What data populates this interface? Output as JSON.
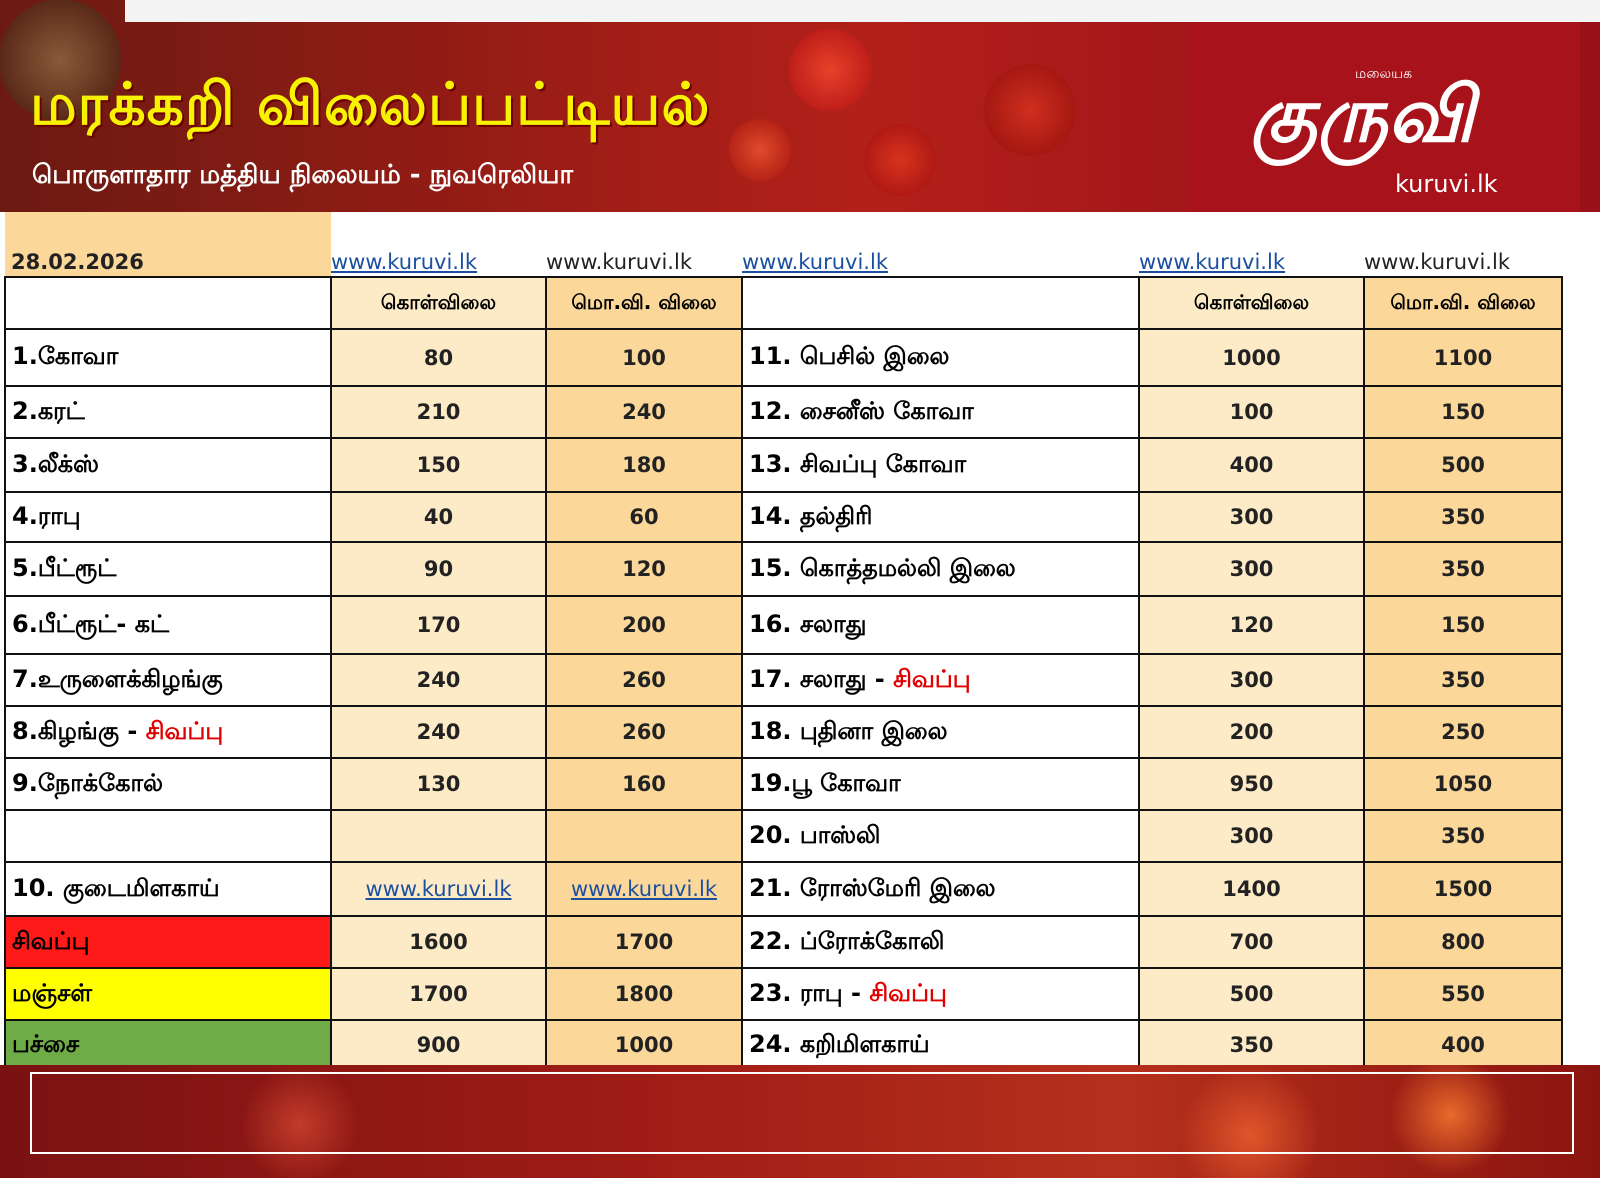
{
  "header": {
    "title": "மரக்கறி விலைப்பட்டியல்",
    "subtitle": "பொருளாதார மத்திய நிலையம் - நுவரெலியா",
    "logo_small": "மலையக",
    "logo_text": "குருவி",
    "logo_url": "kuruvi.lk"
  },
  "date": "28.02.2026",
  "watermark": "www.kuruvi.lk",
  "columns": {
    "wholesale": "கொள்விலை",
    "retail": "மொ.வி. விலை"
  },
  "left_rows": [
    {
      "name": "1.கோவா",
      "wholesale": "80",
      "retail": "100"
    },
    {
      "name": "2.கரட்",
      "wholesale": "210",
      "retail": "240"
    },
    {
      "name": "3.லீக்ஸ்",
      "wholesale": "150",
      "retail": "180"
    },
    {
      "name": "4.ராபு",
      "wholesale": "40",
      "retail": "60"
    },
    {
      "name": "5.பீட்ரூட்",
      "wholesale": "90",
      "retail": "120"
    },
    {
      "name": "6.பீட்ரூட்- கட்",
      "wholesale": "170",
      "retail": "200"
    },
    {
      "name": "7.உருளைக்கிழங்கு",
      "wholesale": "240",
      "retail": "260"
    },
    {
      "name": "8.கிழங்கு - ",
      "name_red": "சிவப்பு",
      "wholesale": "240",
      "retail": "260"
    },
    {
      "name": "9.நோக்கோல்",
      "wholesale": "130",
      "retail": "160"
    },
    {
      "name": "",
      "wholesale": "",
      "retail": ""
    },
    {
      "name": "10. குடைமிளகாய்",
      "wholesale": "www.kuruvi.lk",
      "retail": "www.kuruvi.lk"
    },
    {
      "name": "சிவப்பு",
      "wholesale": "1600",
      "retail": "1700"
    },
    {
      "name": "மஞ்சள்",
      "wholesale": "1700",
      "retail": "1800"
    },
    {
      "name": "பச்சை",
      "wholesale": "900",
      "retail": "1000"
    }
  ],
  "right_rows": [
    {
      "name": "11. பெசில் இலை",
      "wholesale": "1000",
      "retail": "1100"
    },
    {
      "name": "12. சைனீஸ் கோவா",
      "wholesale": "100",
      "retail": "150"
    },
    {
      "name": "13. சிவப்பு கோவா",
      "wholesale": "400",
      "retail": "500"
    },
    {
      "name": "14. தல்திரி",
      "wholesale": "300",
      "retail": "350"
    },
    {
      "name": "15. கொத்தமல்லி இலை",
      "wholesale": "300",
      "retail": "350"
    },
    {
      "name": "16. சலாது",
      "wholesale": "120",
      "retail": "150"
    },
    {
      "name": "17. சலாது - ",
      "name_red": "சிவப்பு",
      "wholesale": "300",
      "retail": "350"
    },
    {
      "name": "18. புதினா இலை",
      "wholesale": "200",
      "retail": "250"
    },
    {
      "name": "19.பூ கோவா",
      "wholesale": "950",
      "retail": "1050"
    },
    {
      "name": "20. பாஸ்லி",
      "wholesale": "300",
      "retail": "350"
    },
    {
      "name": "21. ரோஸ்மேரி இலை",
      "wholesale": "1400",
      "retail": "1500"
    },
    {
      "name": "22. ப்ரோக்கோலி",
      "wholesale": "700",
      "retail": "800"
    },
    {
      "name": "23. ராபு - ",
      "name_red": "சிவப்பு",
      "wholesale": "500",
      "retail": "550"
    },
    {
      "name": "24. கறிமிளகாய்",
      "wholesale": "350",
      "retail": "400"
    }
  ],
  "colors": {
    "title_yellow": "#f7f200",
    "header_red": "#a8121a",
    "cell_light": "#fdebc8",
    "cell_dark": "#fbd89a",
    "pepper_red": "#ff1a1a",
    "pepper_yellow": "#ffff00",
    "pepper_green": "#6fab46"
  }
}
